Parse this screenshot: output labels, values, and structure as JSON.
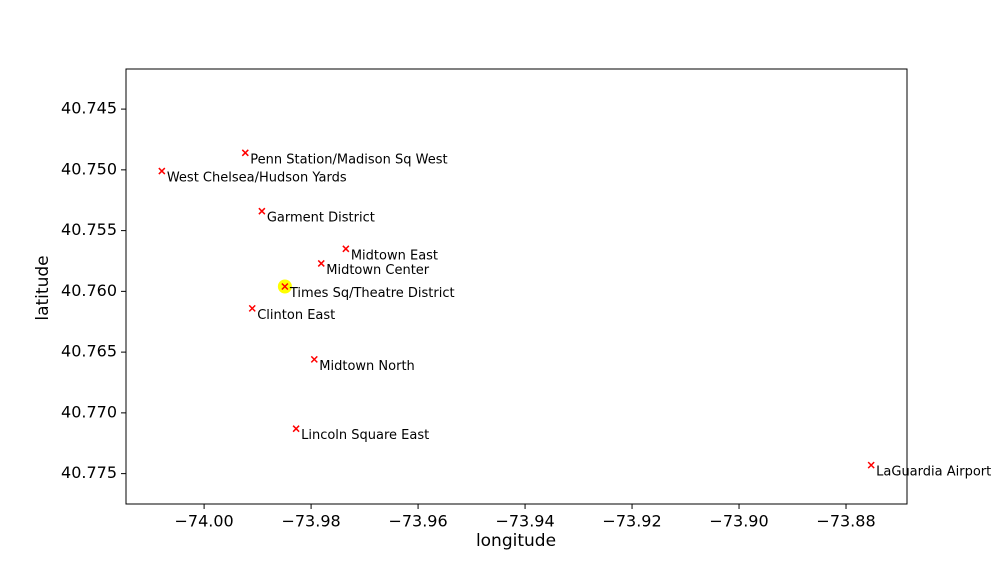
{
  "chart_data": {
    "type": "scatter",
    "x_label": "longitude",
    "y_label": "latitude",
    "x": [
      -73.9923,
      -74.0079,
      -73.9892,
      -73.9735,
      -73.9781,
      -73.9849,
      -73.991,
      -73.9794,
      -73.9828,
      -73.8753
    ],
    "series": [
      {
        "color": "#ff0000",
        "values": [
          40.7486,
          40.7501,
          40.7534,
          40.7565,
          40.7577,
          40.7596,
          40.7614,
          40.7656,
          40.7713,
          40.7743
        ]
      }
    ],
    "labels": [
      "Penn Station/Madison Sq West",
      "West Chelsea/Hudson Yards",
      "Garment District",
      "Midtown East",
      "Midtown Center",
      "Times Sq/Theatre District",
      "Clinton East",
      "Midtown North",
      "Lincoln Square East",
      "LaGuardia Airport"
    ],
    "highlight_index": 5,
    "highlight_color": "#ffff00",
    "xlim": [
      -74.0146,
      -73.8686
    ],
    "ylim": [
      40.7775,
      40.7417
    ],
    "xticks": [
      {
        "value": -74.0,
        "label": "−74.00"
      },
      {
        "value": -73.98,
        "label": "−73.98"
      },
      {
        "value": -73.96,
        "label": "−73.96"
      },
      {
        "value": -73.94,
        "label": "−73.94"
      },
      {
        "value": -73.92,
        "label": "−73.92"
      },
      {
        "value": -73.9,
        "label": "−73.90"
      },
      {
        "value": -73.88,
        "label": "−73.88"
      }
    ],
    "yticks": [
      40.745,
      {
        "value": 40.75,
        "label": "40.750"
      },
      40.755,
      {
        "value": 40.76,
        "label": "40.760"
      },
      40.765,
      {
        "value": 40.77,
        "label": "40.770"
      },
      40.775
    ]
  }
}
